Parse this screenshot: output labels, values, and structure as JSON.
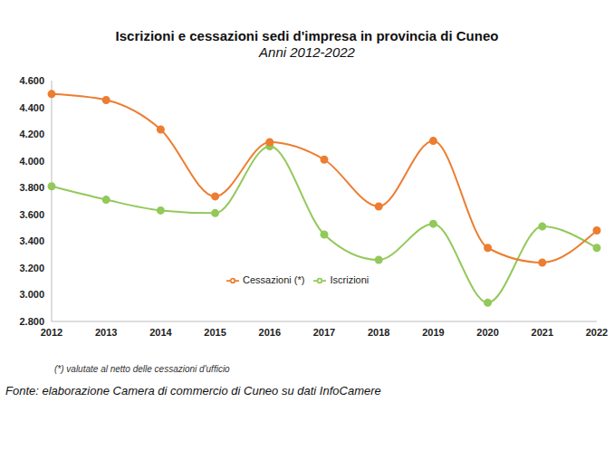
{
  "chart_data": {
    "type": "line",
    "title": "Iscrizioni e cessazioni sedi d'impresa in provincia di Cuneo",
    "subtitle": "Anni 2012-2022",
    "annotations": [
      "(*) valutate al netto delle cessazioni d'ufficio",
      "Fonte: elaborazione Camera di commercio di Cuneo su dati InfoCamere"
    ],
    "categories": [
      "2012",
      "2013",
      "2014",
      "2015",
      "2016",
      "2017",
      "2018",
      "2019",
      "2020",
      "2021",
      "2022"
    ],
    "series": [
      {
        "name": "Iscrizioni",
        "color": "#92c95a",
        "values": [
          3810,
          3710,
          3630,
          3610,
          4110,
          3450,
          3260,
          3530,
          2940,
          3510,
          3350
        ]
      },
      {
        "name": "Cessazioni (*)",
        "color": "#ed7d31",
        "values": [
          4500,
          4455,
          4235,
          3735,
          4140,
          4010,
          3660,
          4150,
          3350,
          3240,
          3480
        ]
      }
    ],
    "ylim": [
      2800,
      4600
    ],
    "yticks": [
      {
        "value": 2800,
        "label": "2.800"
      },
      {
        "value": 3000,
        "label": "3.000"
      },
      {
        "value": 3200,
        "label": "3.200"
      },
      {
        "value": 3400,
        "label": "3.400"
      },
      {
        "value": 3600,
        "label": "3.600"
      },
      {
        "value": 3800,
        "label": "3.800"
      },
      {
        "value": 4000,
        "label": "4.000"
      },
      {
        "value": 4200,
        "label": "4.200"
      },
      {
        "value": 4400,
        "label": "4.400"
      },
      {
        "value": 4600,
        "label": "4.600"
      }
    ],
    "grid": false,
    "legend": "center",
    "marker": "circle",
    "line_style": "smooth"
  }
}
